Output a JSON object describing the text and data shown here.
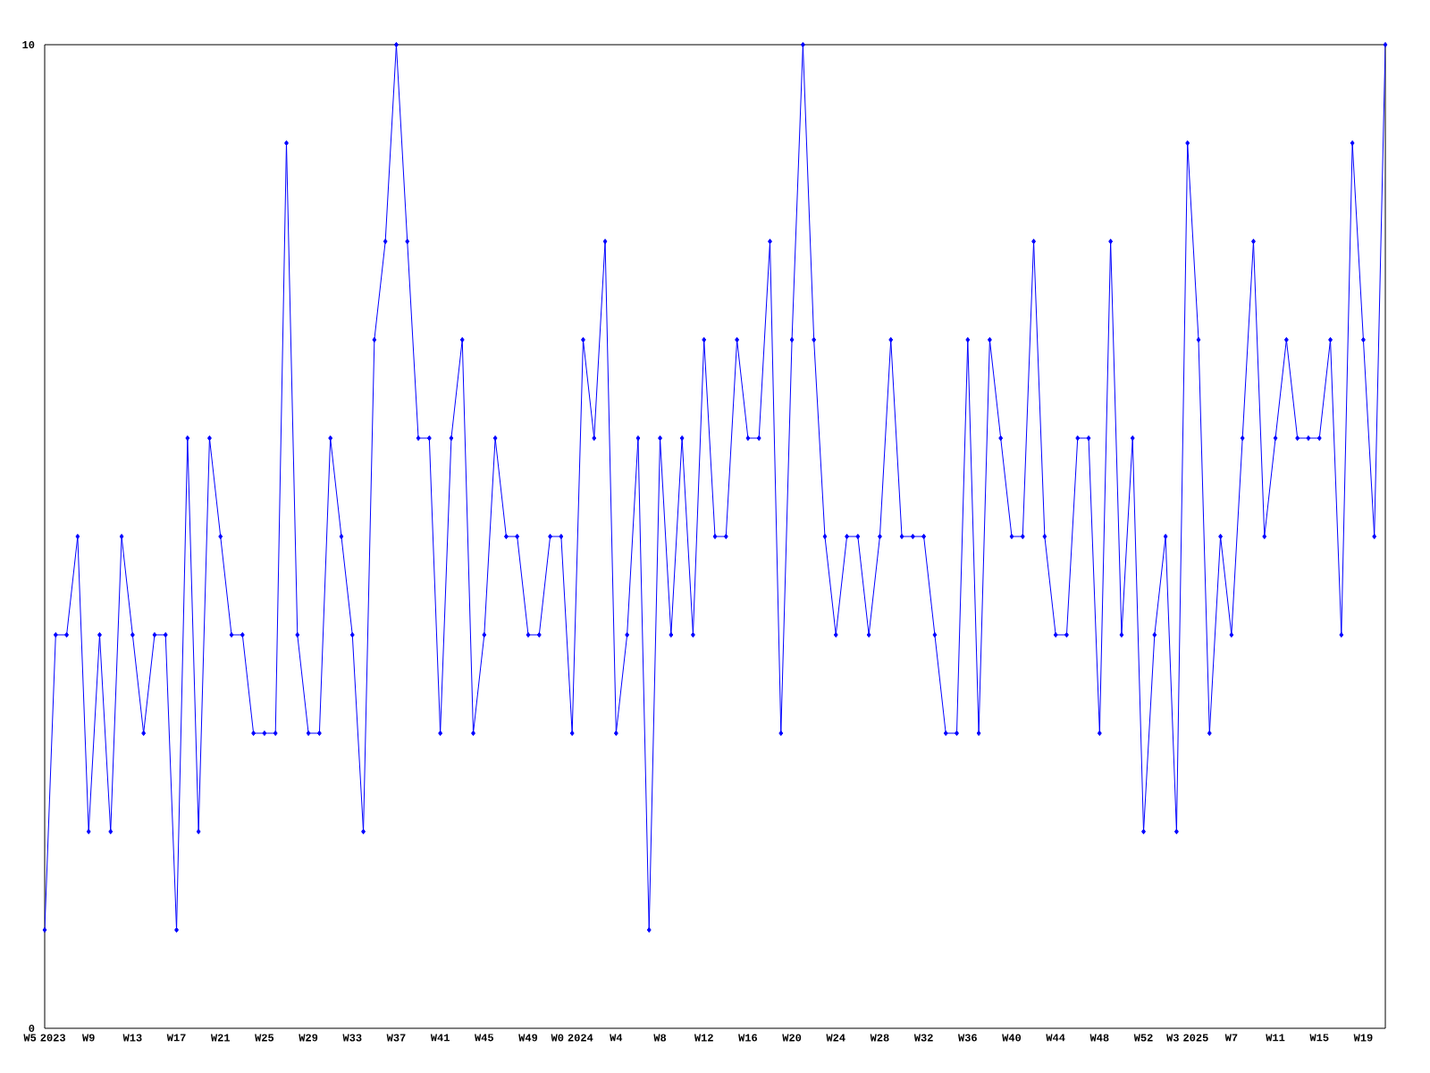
{
  "chart_data": {
    "type": "line",
    "categories": [
      "W5 2023",
      null,
      null,
      null,
      "W9",
      null,
      null,
      null,
      "W13",
      null,
      null,
      null,
      "W17",
      null,
      null,
      null,
      "W21",
      null,
      null,
      null,
      "W25",
      null,
      null,
      null,
      "W29",
      null,
      null,
      null,
      "W33",
      null,
      null,
      null,
      "W37",
      null,
      null,
      null,
      "W41",
      null,
      null,
      null,
      "W45",
      null,
      null,
      null,
      "W49",
      null,
      null,
      null,
      "W0 2024",
      null,
      null,
      null,
      "W4",
      null,
      null,
      null,
      "W8",
      null,
      null,
      null,
      "W12",
      null,
      null,
      null,
      "W16",
      null,
      null,
      null,
      "W20",
      null,
      null,
      null,
      "W24",
      null,
      null,
      null,
      "W28",
      null,
      null,
      null,
      "W32",
      null,
      null,
      null,
      "W36",
      null,
      null,
      null,
      "W40",
      null,
      null,
      null,
      "W44",
      null,
      null,
      null,
      "W48",
      null,
      null,
      null,
      "W52",
      null,
      null,
      null,
      "W3 2025",
      null,
      null,
      null,
      "W7",
      null,
      null,
      null,
      "W11",
      null,
      null,
      null,
      "W15",
      null,
      null,
      null,
      "W19",
      null,
      null
    ],
    "values": [
      1,
      4,
      4,
      5,
      2,
      4,
      2,
      5,
      4,
      3,
      4,
      4,
      1,
      6,
      2,
      6,
      5,
      4,
      4,
      3,
      3,
      3,
      9,
      4,
      3,
      3,
      6,
      5,
      4,
      2,
      7,
      8,
      10,
      8,
      6,
      6,
      3,
      6,
      7,
      3,
      4,
      6,
      5,
      5,
      4,
      4,
      5,
      5,
      3,
      7,
      6,
      8,
      3,
      4,
      6,
      1,
      6,
      4,
      6,
      4,
      7,
      5,
      5,
      7,
      6,
      6,
      8,
      3,
      7,
      10,
      7,
      5,
      4,
      5,
      5,
      4,
      5,
      7,
      5,
      5,
      5,
      4,
      3,
      3,
      7,
      3,
      7,
      6,
      5,
      5,
      8,
      5,
      4,
      4,
      6,
      6,
      3,
      8,
      4,
      6,
      2,
      4,
      5,
      2,
      9,
      7,
      3,
      5,
      4,
      6,
      8,
      5,
      6,
      7,
      6,
      6,
      6,
      7,
      4,
      9,
      7,
      5,
      10
    ],
    "color": "#0000ff",
    "marker": "diamond",
    "line_style": "solid",
    "ylim": [
      0,
      10
    ],
    "yticks": [
      0,
      10
    ],
    "grid": false
  }
}
